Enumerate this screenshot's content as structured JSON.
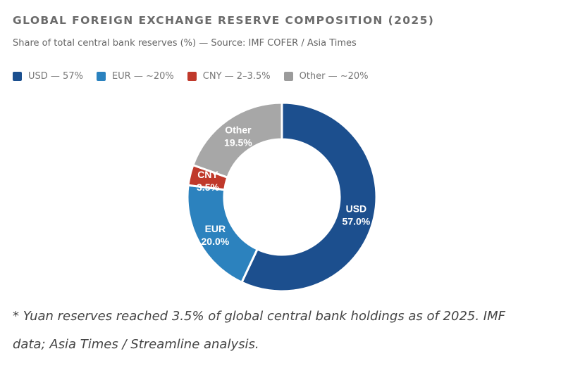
{
  "header": {
    "title": "GLOBAL FOREIGN EXCHANGE RESERVE COMPOSITION (2025)",
    "subtitle": "Share of total central bank reserves (%) — Source: IMF COFER / Asia Times"
  },
  "legend": [
    {
      "label": "USD — 57%",
      "color": "#1b4f8f"
    },
    {
      "label": "EUR — ~20%",
      "color": "#2a82bf"
    },
    {
      "label": "CNY — 2–3.5%",
      "color": "#c0392b"
    },
    {
      "label": "Other — ~20%",
      "color": "#9b9b9b"
    }
  ],
  "chart_data": {
    "type": "pie",
    "variant": "donut",
    "title": "GLOBAL FOREIGN EXCHANGE RESERVE COMPOSITION (2025)",
    "subtitle": "Share of total central bank reserves (%) — Source: IMF COFER / Asia Times",
    "categories": [
      "USD",
      "EUR",
      "CNY",
      "Other"
    ],
    "values": [
      57.0,
      20.0,
      3.5,
      19.5
    ],
    "labels": [
      "57.0%",
      "20.0%",
      "3.5%",
      "19.5%"
    ],
    "colors": [
      "#1c4f8e",
      "#2c82be",
      "#c0392b",
      "#a7a7a7"
    ],
    "start_angle": "top",
    "direction": "clockwise",
    "legend_position": "top-left",
    "legend_entries": [
      "USD — 57%",
      "EUR — ~20%",
      "CNY — 2–3.5%",
      "Other — ~20%"
    ]
  },
  "footnote": {
    "line1": "* Yuan reserves reached 3.5% of global central bank holdings as of 2025. IMF",
    "line2": "data; Asia Times / Streamline analysis."
  }
}
